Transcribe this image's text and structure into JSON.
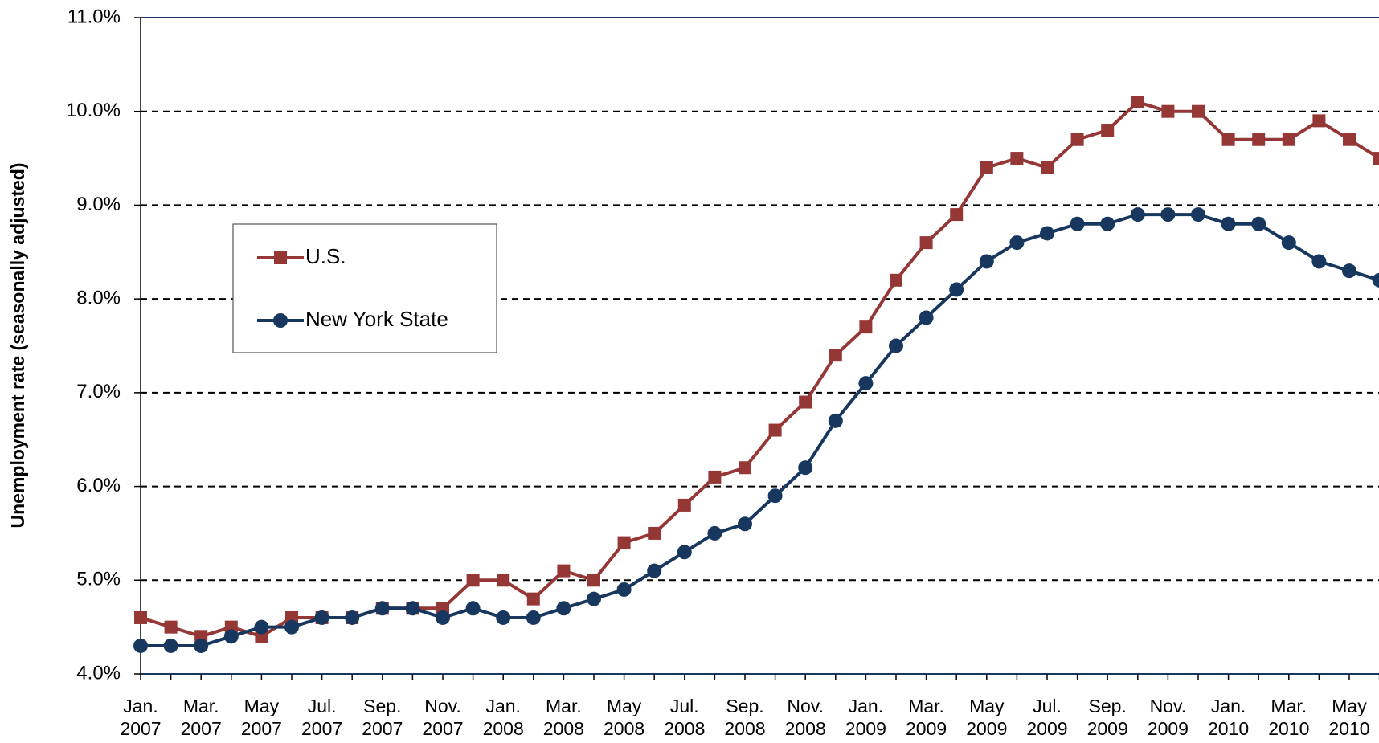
{
  "chart_data": {
    "type": "line",
    "y_label": "Unemployment rate (seasonally adjusted)",
    "categories": [
      "Jan. 2007",
      null,
      "Mar. 2007",
      null,
      "May 2007",
      null,
      "Jul. 2007",
      null,
      "Sep. 2007",
      null,
      "Nov. 2007",
      null,
      "Jan. 2008",
      null,
      "Mar. 2008",
      null,
      "May 2008",
      null,
      "Jul. 2008",
      null,
      "Sep. 2008",
      null,
      "Nov. 2008",
      null,
      "Jan. 2009",
      null,
      "Mar. 2009",
      null,
      "May 2009",
      null,
      "Jul. 2009",
      null,
      "Sep. 2009",
      null,
      "Nov. 2009",
      null,
      "Jan. 2010",
      null,
      "Mar. 2010",
      null,
      "May 2010",
      null
    ],
    "series": [
      {
        "name": "U.S.",
        "color": "#953735",
        "marker": "square",
        "values": [
          4.6,
          4.5,
          4.4,
          4.5,
          4.4,
          4.6,
          4.6,
          4.6,
          4.7,
          4.7,
          4.7,
          5.0,
          5.0,
          4.8,
          5.1,
          5.0,
          5.4,
          5.5,
          5.8,
          6.1,
          6.2,
          6.6,
          6.9,
          7.4,
          7.7,
          8.2,
          8.6,
          8.9,
          9.4,
          9.5,
          9.4,
          9.7,
          9.8,
          10.1,
          10.0,
          10.0,
          9.7,
          9.7,
          9.7,
          9.9,
          9.7,
          9.5
        ]
      },
      {
        "name": "New York State",
        "color": "#17375e",
        "marker": "circle",
        "values": [
          4.3,
          4.3,
          4.3,
          4.4,
          4.5,
          4.5,
          4.6,
          4.6,
          4.7,
          4.7,
          4.6,
          4.7,
          4.6,
          4.6,
          4.7,
          4.8,
          4.9,
          5.1,
          5.3,
          5.5,
          5.6,
          5.9,
          6.2,
          6.7,
          7.1,
          7.5,
          7.8,
          8.1,
          8.4,
          8.6,
          8.7,
          8.8,
          8.8,
          8.9,
          8.9,
          8.9,
          8.8,
          8.8,
          8.6,
          8.4,
          8.3,
          8.2
        ]
      }
    ],
    "ylim": [
      4,
      11
    ],
    "yticks": [
      {
        "value": 4,
        "label": "4.0%"
      },
      {
        "value": 5,
        "label": "5.0%"
      },
      {
        "value": 6,
        "label": "6.0%"
      },
      {
        "value": 7,
        "label": "7.0%"
      },
      {
        "value": 8,
        "label": "8.0%"
      },
      {
        "value": 9,
        "label": "9.0%"
      },
      {
        "value": 10,
        "label": "10.0%"
      },
      {
        "value": 11,
        "label": "11.0%"
      }
    ],
    "grid": true,
    "legend": "upper left"
  }
}
